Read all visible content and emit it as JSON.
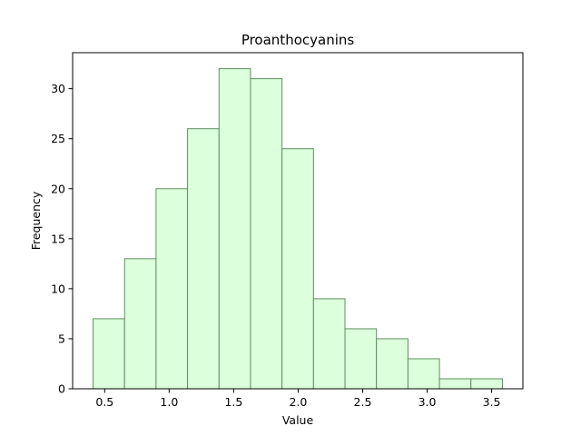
{
  "chart_data": {
    "type": "histogram",
    "title": "Proanthocyanins",
    "xlabel": "Value",
    "ylabel": "Frequency",
    "bin_edges": [
      0.41,
      0.6541,
      0.8983,
      1.1424,
      1.3865,
      1.6306,
      1.8748,
      2.1189,
      2.363,
      2.6072,
      2.8513,
      3.0954,
      3.3395,
      3.5837
    ],
    "values": [
      7,
      13,
      20,
      26,
      32,
      31,
      24,
      9,
      6,
      5,
      3,
      1,
      1
    ],
    "xlim": [
      0.2514,
      3.7423
    ],
    "ylim": [
      0,
      33.6
    ],
    "xticks": [
      0.5,
      1.0,
      1.5,
      2.0,
      2.5,
      3.0,
      3.5
    ],
    "xtick_labels": [
      "0.5",
      "1.0",
      "1.5",
      "2.0",
      "2.5",
      "3.0",
      "3.5"
    ],
    "yticks": [
      0,
      5,
      10,
      15,
      20,
      25,
      30
    ],
    "ytick_labels": [
      "0",
      "5",
      "10",
      "15",
      "20",
      "25",
      "30"
    ],
    "bar_fill": "#dcffdc",
    "bar_edge": "#5e9060",
    "grid": false,
    "legend": "none"
  }
}
